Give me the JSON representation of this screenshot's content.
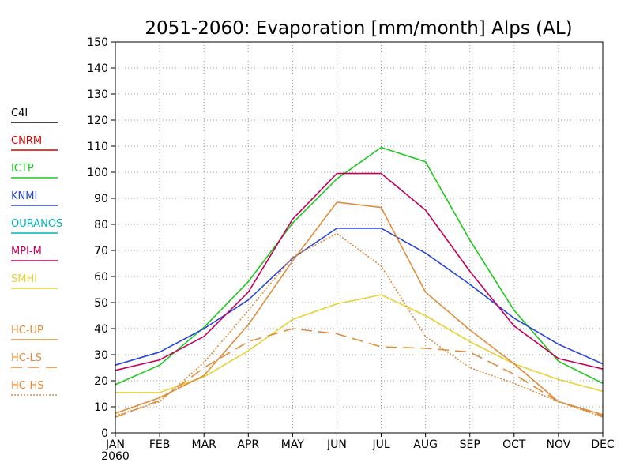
{
  "chart_data": {
    "type": "line",
    "title": "2051-2060: Evaporation [mm/month] Alps (AL)",
    "xlabel": "",
    "ylabel": "",
    "categories": [
      "JAN",
      "FEB",
      "MAR",
      "APR",
      "MAY",
      "JUN",
      "JUL",
      "AUG",
      "SEP",
      "OCT",
      "NOV",
      "DEC"
    ],
    "year_label": "2060",
    "ylim": [
      0,
      150
    ],
    "yticks": [
      0,
      10,
      20,
      30,
      40,
      50,
      60,
      70,
      80,
      90,
      100,
      110,
      120,
      130,
      140,
      150
    ],
    "grid": true,
    "legend_position": "left",
    "series": [
      {
        "name": "C4I",
        "color": "#000000",
        "dash": "solid",
        "values": null
      },
      {
        "name": "CNRM",
        "color": "#d40000",
        "dash": "solid",
        "values": null
      },
      {
        "name": "ICTP",
        "color": "#1ec81e",
        "dash": "solid",
        "values": [
          18.5,
          26,
          40.5,
          58,
          80.5,
          97.5,
          109.5,
          104,
          74,
          47,
          27.5,
          19
        ]
      },
      {
        "name": "KNMI",
        "color": "#2846d8",
        "dash": "solid",
        "values": [
          26,
          31,
          40,
          51,
          67,
          78.5,
          78.5,
          69,
          57,
          44,
          34,
          26.5
        ]
      },
      {
        "name": "OURANOS",
        "color": "#00b4b4",
        "dash": "solid",
        "values": null
      },
      {
        "name": "MPI-M",
        "color": "#c8005a",
        "dash": "solid",
        "values": [
          24,
          28,
          37,
          54,
          82,
          99.5,
          99.5,
          85.5,
          62,
          41,
          28.5,
          24.5
        ]
      },
      {
        "name": "SMHI",
        "color": "#e6d232",
        "dash": "solid",
        "values": [
          15.5,
          15.5,
          21.5,
          31.5,
          43.5,
          49.5,
          53,
          45,
          35,
          26.5,
          20.5,
          16
        ]
      },
      {
        "name": "HC-UP",
        "color": "#e08c3c",
        "dash": "solid",
        "values": [
          7.5,
          13.5,
          22,
          41.5,
          66,
          88.5,
          86.5,
          54,
          39.5,
          26.5,
          12,
          7
        ]
      },
      {
        "name": "HC-LS",
        "color": "#e08c3c",
        "dash": "long-dash",
        "values": [
          6,
          12.5,
          25,
          35,
          40,
          38,
          33,
          32.5,
          31,
          22.5,
          12,
          6.5
        ]
      },
      {
        "name": "HC-HS",
        "color": "#e08c3c",
        "dash": "dotted",
        "values": [
          6.5,
          12,
          27,
          47,
          67.5,
          76.5,
          64,
          37,
          25,
          19,
          12,
          6
        ]
      }
    ]
  }
}
